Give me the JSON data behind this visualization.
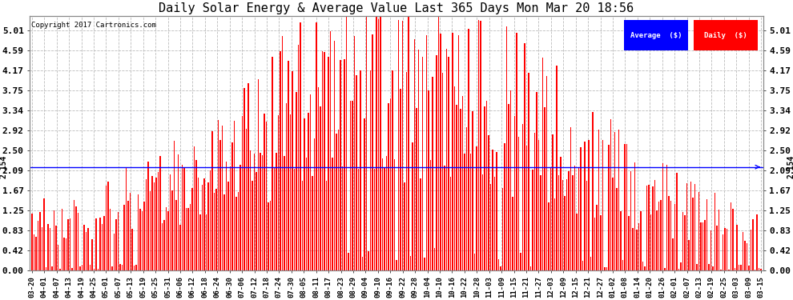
{
  "title": "Daily Solar Energy & Average Value Last 365 Days Mon Mar 20 18:56",
  "title_fontsize": 11,
  "copyright_text": "Copyright 2017 Cartronics.com",
  "average_value": 2.154,
  "average_label": "2.154",
  "y_ticks": [
    0.0,
    0.42,
    0.83,
    1.25,
    1.67,
    2.09,
    2.5,
    2.92,
    3.34,
    3.75,
    4.17,
    4.59,
    5.01
  ],
  "bar_color": "#FF0000",
  "avg_line_color": "#0000FF",
  "background_color": "#FFFFFF",
  "grid_color": "#BBBBBB",
  "legend_avg_bg": "#0000FF",
  "legend_daily_bg": "#FF0000",
  "legend_text_color": "#FFFFFF",
  "x_labels": [
    "03-20",
    "04-01",
    "04-07",
    "04-13",
    "04-19",
    "04-25",
    "05-01",
    "05-07",
    "05-13",
    "05-19",
    "05-25",
    "05-31",
    "06-06",
    "06-12",
    "06-18",
    "06-24",
    "06-30",
    "07-06",
    "07-12",
    "07-18",
    "07-24",
    "07-30",
    "08-05",
    "08-11",
    "08-17",
    "08-23",
    "08-29",
    "09-04",
    "09-10",
    "09-16",
    "09-22",
    "09-28",
    "10-04",
    "10-10",
    "10-16",
    "10-22",
    "10-28",
    "11-03",
    "11-09",
    "11-15",
    "11-21",
    "11-27",
    "12-03",
    "12-09",
    "12-15",
    "12-21",
    "12-27",
    "01-02",
    "01-08",
    "01-14",
    "01-20",
    "01-26",
    "02-01",
    "02-07",
    "02-13",
    "02-19",
    "02-25",
    "03-03",
    "03-09",
    "03-15"
  ],
  "num_bars": 365,
  "figsize": [
    9.9,
    3.75
  ],
  "dpi": 100
}
